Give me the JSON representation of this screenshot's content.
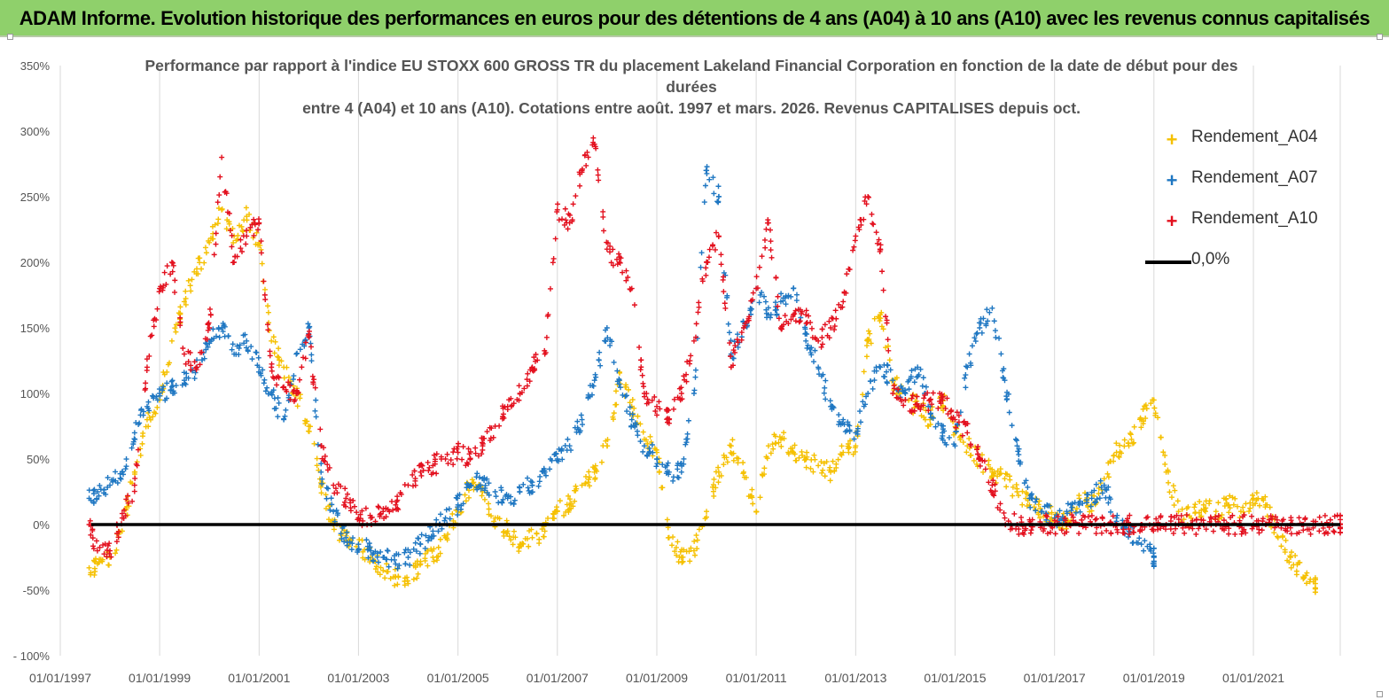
{
  "banner": {
    "title": "ADAM Informe. Evolution historique des performances en euros pour des détentions de 4 ans (A04) à 10 ans (A10) avec les revenus connus capitalisés"
  },
  "chart_data": {
    "type": "scatter",
    "title_lines": [
      "Performance par rapport à l'indice EU STOXX 600 GROSS TR  du placement Lakeland Financial Corporation en fonction de la date de début pour des durées",
      "entre 4 (A04) et 10 ans (A10). Cotations entre août. 1997 et mars. 2026. Revenus CAPITALISES depuis oct."
    ],
    "xlabel": "",
    "ylabel": "",
    "y_unit": "%",
    "ylim": [
      -100,
      350
    ],
    "y_ticks": [
      "350%",
      "300%",
      "250%",
      "200%",
      "150%",
      "100%",
      "50%",
      "0%",
      "-50%",
      "- 100%"
    ],
    "y_tick_values": [
      350,
      300,
      250,
      200,
      150,
      100,
      50,
      0,
      -50,
      -100
    ],
    "xlim": [
      "1997-01-01",
      "2022-10-01"
    ],
    "x_ticks": [
      "01/01/1997",
      "01/01/1999",
      "01/01/2001",
      "01/01/2003",
      "01/01/2005",
      "01/01/2007",
      "01/01/2009",
      "01/01/2011",
      "01/01/2013",
      "01/01/2015",
      "01/01/2017",
      "01/01/2019",
      "01/01/2021"
    ],
    "x_tick_dates": [
      "1997-01-01",
      "1999-01-01",
      "2001-01-01",
      "2003-01-01",
      "2005-01-01",
      "2007-01-01",
      "2009-01-01",
      "2011-01-01",
      "2013-01-01",
      "2015-01-01",
      "2017-01-01",
      "2019-01-01",
      "2021-01-01"
    ],
    "grid": "vertical",
    "legend_position": "right",
    "series": [
      {
        "name": "Rendement_A04",
        "color": "#f5c000",
        "marker": "+",
        "x": [
          "1997-08-01",
          "1997-10-01",
          "1998-01-01",
          "1998-04-01",
          "1998-07-01",
          "1998-10-01",
          "1999-01-01",
          "1999-04-01",
          "1999-07-01",
          "1999-10-01",
          "2000-01-01",
          "2000-04-01",
          "2000-07-01",
          "2000-10-01",
          "2001-01-01",
          "2001-04-01",
          "2001-07-01",
          "2001-10-01",
          "2002-01-01",
          "2002-04-01",
          "2002-07-01",
          "2002-10-01",
          "2003-01-01",
          "2003-04-01",
          "2003-07-01",
          "2003-10-01",
          "2004-01-01",
          "2004-04-01",
          "2004-07-01",
          "2004-10-01",
          "2005-01-01",
          "2005-04-01",
          "2005-07-01",
          "2005-10-01",
          "2006-01-01",
          "2006-04-01",
          "2006-07-01",
          "2006-10-01",
          "2007-01-01",
          "2007-04-01",
          "2007-07-01",
          "2007-10-01",
          "2008-01-01",
          "2008-04-01",
          "2008-07-01",
          "2008-10-01",
          "2009-01-01",
          "2009-04-01",
          "2009-07-01",
          "2009-10-01",
          "2010-01-01",
          "2010-04-01",
          "2010-07-01",
          "2010-10-01",
          "2011-01-01",
          "2011-04-01",
          "2011-07-01",
          "2011-10-01",
          "2012-01-01",
          "2012-04-01",
          "2012-07-01",
          "2012-10-01",
          "2013-01-01",
          "2013-04-01",
          "2013-07-01",
          "2013-10-01",
          "2014-01-01",
          "2014-04-01",
          "2014-07-01",
          "2014-10-01",
          "2015-01-01",
          "2015-04-01",
          "2015-07-01",
          "2015-10-01",
          "2016-01-01",
          "2016-04-01",
          "2016-07-01",
          "2016-10-01",
          "2017-01-01",
          "2017-04-01",
          "2017-07-01",
          "2017-10-01",
          "2018-01-01",
          "2018-04-01",
          "2018-07-01",
          "2018-10-01",
          "2019-01-01",
          "2019-04-01",
          "2019-07-01",
          "2019-10-01",
          "2020-01-01",
          "2020-04-01",
          "2020-07-01",
          "2020-10-01",
          "2021-01-01",
          "2021-04-01",
          "2021-07-01",
          "2021-10-01",
          "2022-01-01",
          "2022-04-01"
        ],
        "y": [
          -33,
          -30,
          -25,
          -5,
          40,
          80,
          95,
          140,
          170,
          195,
          215,
          240,
          220,
          235,
          215,
          140,
          120,
          100,
          75,
          30,
          0,
          -12,
          -15,
          -25,
          -35,
          -40,
          -45,
          -30,
          -25,
          -10,
          10,
          30,
          25,
          5,
          -5,
          -15,
          -10,
          -5,
          10,
          15,
          30,
          40,
          60,
          110,
          90,
          65,
          55,
          -10,
          -25,
          -20,
          10,
          40,
          60,
          40,
          10,
          60,
          65,
          55,
          50,
          45,
          40,
          55,
          60,
          140,
          160,
          110,
          95,
          90,
          80,
          95,
          70,
          60,
          50,
          40,
          35,
          25,
          15,
          10,
          5,
          0,
          20,
          15,
          35,
          55,
          60,
          80,
          95,
          40,
          10,
          5,
          15,
          10,
          15,
          10,
          20,
          15,
          -10,
          -25,
          -40,
          -45
        ]
      },
      {
        "name": "Rendement_A07",
        "color": "#1f77c2",
        "marker": "+",
        "x": [
          "1997-08-01",
          "1997-10-01",
          "1998-01-01",
          "1998-04-01",
          "1998-07-01",
          "1998-10-01",
          "1999-01-01",
          "1999-04-01",
          "1999-07-01",
          "1999-10-01",
          "2000-01-01",
          "2000-04-01",
          "2000-07-01",
          "2000-10-01",
          "2001-01-01",
          "2001-04-01",
          "2001-07-01",
          "2001-10-01",
          "2002-01-01",
          "2002-04-01",
          "2002-07-01",
          "2002-10-01",
          "2003-01-01",
          "2003-04-01",
          "2003-07-01",
          "2003-10-01",
          "2004-01-01",
          "2004-04-01",
          "2004-07-01",
          "2004-10-01",
          "2005-01-01",
          "2005-04-01",
          "2005-07-01",
          "2005-10-01",
          "2006-01-01",
          "2006-04-01",
          "2006-07-01",
          "2006-10-01",
          "2007-01-01",
          "2007-04-01",
          "2007-07-01",
          "2007-10-01",
          "2008-01-01",
          "2008-04-01",
          "2008-07-01",
          "2008-10-01",
          "2009-01-01",
          "2009-04-01",
          "2009-07-01",
          "2009-10-01",
          "2010-01-01",
          "2010-04-01",
          "2010-07-01",
          "2010-10-01",
          "2011-01-01",
          "2011-04-01",
          "2011-07-01",
          "2011-10-01",
          "2012-01-01",
          "2012-04-01",
          "2012-07-01",
          "2012-10-01",
          "2013-01-01",
          "2013-04-01",
          "2013-07-01",
          "2013-10-01",
          "2014-01-01",
          "2014-04-01",
          "2014-07-01",
          "2014-10-01",
          "2015-01-01",
          "2015-04-01",
          "2015-07-01",
          "2015-10-01",
          "2016-01-01",
          "2016-04-01",
          "2016-07-01",
          "2016-10-01",
          "2017-01-01",
          "2017-04-01",
          "2017-07-01",
          "2017-10-01",
          "2018-01-01",
          "2018-04-01",
          "2018-07-01",
          "2018-10-01",
          "2019-01-01"
        ],
        "y": [
          20,
          25,
          30,
          40,
          70,
          90,
          100,
          105,
          110,
          120,
          140,
          150,
          130,
          140,
          120,
          100,
          80,
          130,
          150,
          40,
          10,
          -10,
          -15,
          -20,
          -25,
          -30,
          -25,
          -15,
          -5,
          5,
          15,
          30,
          35,
          25,
          20,
          25,
          30,
          40,
          50,
          60,
          80,
          110,
          150,
          110,
          80,
          60,
          50,
          40,
          40,
          100,
          270,
          250,
          130,
          150,
          180,
          160,
          170,
          180,
          140,
          120,
          90,
          80,
          70,
          100,
          120,
          110,
          100,
          120,
          90,
          70,
          60,
          120,
          150,
          165,
          110,
          60,
          20,
          10,
          5,
          10,
          15,
          20,
          30,
          5,
          -5,
          -15,
          -25
        ]
      },
      {
        "name": "Rendement_A10",
        "color": "#e3101e",
        "marker": "+",
        "x": [
          "1997-08-01",
          "1997-10-01",
          "1998-01-01",
          "1998-04-01",
          "1998-07-01",
          "1998-10-01",
          "1999-01-01",
          "1999-04-01",
          "1999-07-01",
          "1999-10-01",
          "2000-01-01",
          "2000-04-01",
          "2000-07-01",
          "2000-10-01",
          "2001-01-01",
          "2001-04-01",
          "2001-07-01",
          "2001-10-01",
          "2002-01-01",
          "2002-04-01",
          "2002-07-01",
          "2002-10-01",
          "2003-01-01",
          "2003-04-01",
          "2003-07-01",
          "2003-10-01",
          "2004-01-01",
          "2004-04-01",
          "2004-07-01",
          "2004-10-01",
          "2005-01-01",
          "2005-04-01",
          "2005-07-01",
          "2005-10-01",
          "2006-01-01",
          "2006-04-01",
          "2006-07-01",
          "2006-10-01",
          "2007-01-01",
          "2007-04-01",
          "2007-07-01",
          "2007-10-01",
          "2008-01-01",
          "2008-04-01",
          "2008-07-01",
          "2008-10-01",
          "2009-01-01",
          "2009-04-01",
          "2009-07-01",
          "2009-10-01",
          "2010-01-01",
          "2010-04-01",
          "2010-07-01",
          "2010-10-01",
          "2011-01-01",
          "2011-04-01",
          "2011-07-01",
          "2011-10-01",
          "2012-01-01",
          "2012-04-01",
          "2012-07-01",
          "2012-10-01",
          "2013-01-01",
          "2013-04-01",
          "2013-07-01",
          "2013-10-01",
          "2014-01-01",
          "2014-04-01",
          "2014-07-01",
          "2014-10-01",
          "2015-01-01",
          "2015-04-01",
          "2015-07-01",
          "2015-10-01",
          "2016-01-01",
          "2016-04-01",
          "2016-07-01",
          "2016-10-01",
          "2017-01-01",
          "2017-04-01",
          "2017-07-01",
          "2017-10-01",
          "2018-01-01",
          "2018-04-01",
          "2018-07-01",
          "2018-10-01",
          "2019-01-01",
          "2019-04-01",
          "2019-07-01",
          "2019-10-01",
          "2020-01-01",
          "2020-04-01",
          "2020-07-01",
          "2020-10-01",
          "2021-01-01",
          "2021-04-01",
          "2021-07-01",
          "2021-10-01",
          "2022-01-01",
          "2022-04-01",
          "2022-07-01",
          "2022-10-01"
        ],
        "y": [
          0,
          -20,
          -20,
          5,
          30,
          120,
          180,
          200,
          130,
          120,
          150,
          280,
          200,
          220,
          230,
          120,
          105,
          100,
          145,
          60,
          30,
          20,
          5,
          5,
          10,
          15,
          30,
          40,
          45,
          50,
          55,
          50,
          60,
          75,
          90,
          100,
          120,
          130,
          240,
          230,
          270,
          290,
          210,
          200,
          180,
          100,
          90,
          80,
          100,
          140,
          200,
          220,
          120,
          150,
          180,
          230,
          150,
          160,
          160,
          140,
          150,
          170,
          220,
          250,
          210,
          100,
          95,
          90,
          95,
          95,
          80,
          70,
          50,
          30,
          5,
          0,
          0,
          0,
          0,
          0,
          0,
          0,
          0,
          0,
          0,
          0,
          0,
          0,
          0,
          0,
          0,
          0,
          0,
          0,
          0,
          0,
          0,
          0,
          0,
          0,
          0,
          0
        ]
      },
      {
        "name": "0,0%",
        "color": "#000000",
        "marker": "line",
        "y_constant": 0
      }
    ]
  }
}
